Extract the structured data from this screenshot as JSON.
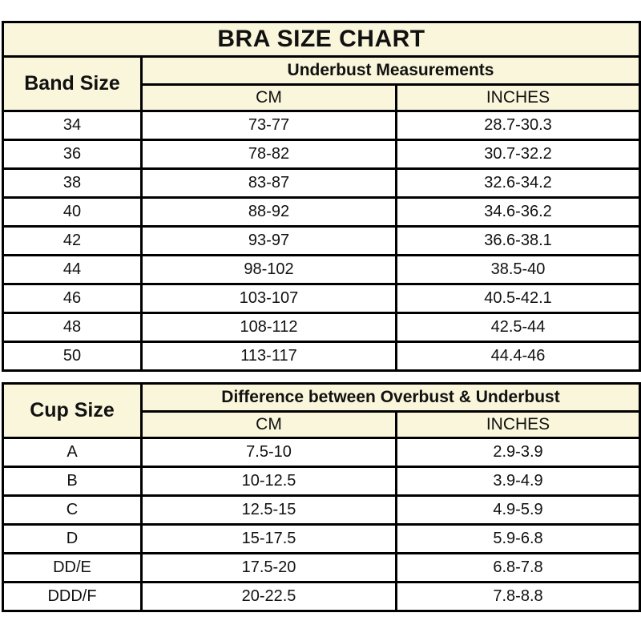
{
  "colors": {
    "header_bg": "#faf6db",
    "border": "#000000",
    "text": "#111111",
    "row_bg": "#ffffff"
  },
  "chart_data": [
    {
      "type": "table",
      "title": "BRA SIZE CHART",
      "corner_header": "Band Size",
      "group_header": "Underbust Measurements",
      "columns": [
        "CM",
        "INCHES"
      ],
      "rows": [
        [
          "34",
          "73-77",
          "28.7-30.3"
        ],
        [
          "36",
          "78-82",
          "30.7-32.2"
        ],
        [
          "38",
          "83-87",
          "32.6-34.2"
        ],
        [
          "40",
          "88-92",
          "34.6-36.2"
        ],
        [
          "42",
          "93-97",
          "36.6-38.1"
        ],
        [
          "44",
          "98-102",
          "38.5-40"
        ],
        [
          "46",
          "103-107",
          "40.5-42.1"
        ],
        [
          "48",
          "108-112",
          "42.5-44"
        ],
        [
          "50",
          "113-117",
          "44.4-46"
        ]
      ]
    },
    {
      "type": "table",
      "corner_header": "Cup Size",
      "group_header": "Difference between Overbust & Underbust",
      "columns": [
        "CM",
        "INCHES"
      ],
      "rows": [
        [
          "A",
          "7.5-10",
          "2.9-3.9"
        ],
        [
          "B",
          "10-12.5",
          "3.9-4.9"
        ],
        [
          "C",
          "12.5-15",
          "4.9-5.9"
        ],
        [
          "D",
          "15-17.5",
          "5.9-6.8"
        ],
        [
          "DD/E",
          "17.5-20",
          "6.8-7.8"
        ],
        [
          "DDD/F",
          "20-22.5",
          "7.8-8.8"
        ]
      ]
    }
  ]
}
